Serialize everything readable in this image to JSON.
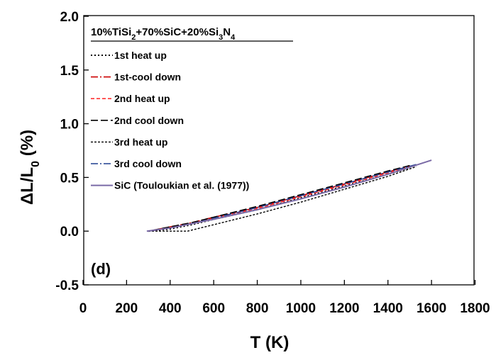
{
  "chart_data": {
    "type": "line",
    "title": "",
    "panel_label": "(d)",
    "legend_title": {
      "parts": [
        {
          "t": "10%TiSi",
          "sub": false
        },
        {
          "t": "2",
          "sub": true
        },
        {
          "t": "+70%SiC+20%Si",
          "sub": false
        },
        {
          "t": "3",
          "sub": true
        },
        {
          "t": "N",
          "sub": false
        },
        {
          "t": "4",
          "sub": true
        }
      ]
    },
    "xlabel": "T (K)",
    "ylabel": {
      "parts": [
        {
          "t": "ΔL/L",
          "sub": false
        },
        {
          "t": "0",
          "sub": true
        },
        {
          "t": " (%)",
          "sub": false
        }
      ]
    },
    "xlim": [
      0,
      1800
    ],
    "ylim": [
      -0.5,
      2.0
    ],
    "xticks": [
      0,
      200,
      400,
      600,
      800,
      1000,
      1200,
      1400,
      1600,
      1800
    ],
    "yticks": [
      {
        "v": -0.5,
        "label": "-0.5"
      },
      {
        "v": 0.0,
        "label": "0.0"
      },
      {
        "v": 0.5,
        "label": "0.5"
      },
      {
        "v": 1.0,
        "label": "1.0"
      },
      {
        "v": 1.5,
        "label": "1.5"
      },
      {
        "v": 2.0,
        "label": "2.0"
      }
    ],
    "grid": false,
    "legend_position": "top-left",
    "series": [
      {
        "name": "1st heat up",
        "color": "#000000",
        "dash": "2,3",
        "width": 2,
        "x": [
          300,
          400,
          500,
          600,
          800,
          1000,
          1200,
          1400,
          1500
        ],
        "y": [
          0.0,
          0.02,
          0.06,
          0.11,
          0.2,
          0.31,
          0.42,
          0.53,
          0.59
        ]
      },
      {
        "name": "1st-cool down",
        "color": "#cc0000",
        "dash": "10,3,2,3",
        "width": 1.6,
        "x": [
          1500,
          1400,
          1200,
          1000,
          800,
          600,
          500,
          400,
          300
        ],
        "y": [
          0.61,
          0.55,
          0.44,
          0.33,
          0.22,
          0.13,
          0.08,
          0.04,
          0.0
        ]
      },
      {
        "name": "2nd heat up",
        "color": "#ff3333",
        "dash": "5,3",
        "width": 1.6,
        "x": [
          300,
          400,
          500,
          600,
          800,
          1000,
          1200,
          1400,
          1500
        ],
        "y": [
          0.0,
          0.03,
          0.07,
          0.12,
          0.21,
          0.32,
          0.43,
          0.54,
          0.6
        ]
      },
      {
        "name": "2nd cool down",
        "color": "#000000",
        "dash": "10,4",
        "width": 1.6,
        "x": [
          1500,
          1400,
          1200,
          1000,
          800,
          600,
          500,
          400,
          300
        ],
        "y": [
          0.61,
          0.56,
          0.45,
          0.34,
          0.23,
          0.13,
          0.08,
          0.04,
          0.0
        ]
      },
      {
        "name": "3rd heat up",
        "color": "#000000",
        "dash": "3,2",
        "width": 1.4,
        "x": [
          300,
          400,
          480,
          600,
          800,
          1000,
          1200,
          1400,
          1530
        ],
        "y": [
          0.0,
          0.0,
          0.0,
          0.06,
          0.16,
          0.27,
          0.39,
          0.51,
          0.6
        ]
      },
      {
        "name": "3rd cool down",
        "color": "#1f3f8f",
        "dash": "10,3,2,3",
        "width": 1.6,
        "x": [
          1530,
          1400,
          1200,
          1000,
          800,
          600,
          500,
          400,
          300
        ],
        "y": [
          0.62,
          0.55,
          0.44,
          0.33,
          0.22,
          0.12,
          0.07,
          0.03,
          0.0
        ]
      },
      {
        "name": "SiC (Touloukian et al. (1977))",
        "color": "#7a6aa6",
        "dash": "",
        "width": 2,
        "x": [
          293,
          400,
          500,
          600,
          800,
          1000,
          1200,
          1400,
          1600
        ],
        "y": [
          0.0,
          0.03,
          0.07,
          0.11,
          0.2,
          0.3,
          0.41,
          0.53,
          0.66
        ]
      }
    ]
  }
}
